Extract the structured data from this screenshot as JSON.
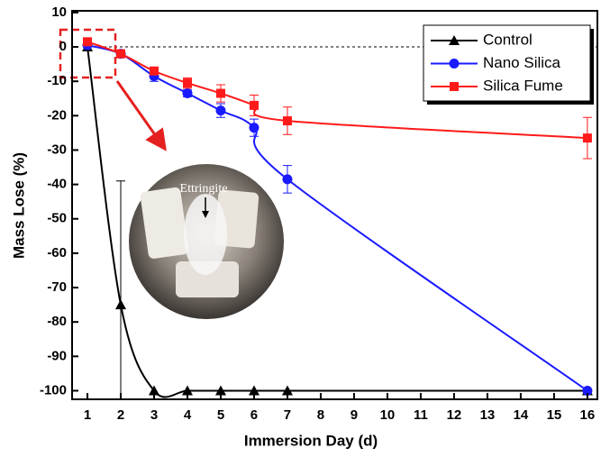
{
  "chart_data": {
    "type": "line",
    "x_label": "Immersion Day (d)",
    "y_label": "Mass Lose (%)",
    "x": [
      1,
      2,
      3,
      4,
      5,
      6,
      7,
      16
    ],
    "xlim": [
      0.54,
      16.3
    ],
    "xticks": [
      1,
      2,
      3,
      4,
      5,
      6,
      7,
      8,
      9,
      10,
      11,
      12,
      13,
      14,
      15,
      16
    ],
    "ylim": [
      -102.5,
      10.5
    ],
    "yticks": [
      10,
      0,
      -10,
      -20,
      -30,
      -40,
      -50,
      -60,
      -70,
      -80,
      -90,
      -100
    ],
    "hline": 0,
    "legend": "upper right",
    "inset_label": "Ettringite",
    "series": [
      {
        "name": "Control",
        "color": "#000000",
        "marker": "triangle",
        "values": [
          0,
          -75,
          -100,
          -100,
          -100,
          -100,
          -100,
          -100
        ],
        "errors": [
          null,
          36,
          null,
          null,
          null,
          null,
          null,
          null
        ]
      },
      {
        "name": "Nano Silica",
        "color": "#1a1aff",
        "marker": "circle",
        "values": [
          0.5,
          -2,
          -8.5,
          -13.5,
          -18.5,
          -23.5,
          -38.5,
          -100
        ],
        "errors": [
          null,
          null,
          1.5,
          1,
          2,
          2.5,
          4,
          null
        ]
      },
      {
        "name": "Silica Fume",
        "color": "#ff1a1a",
        "marker": "square",
        "values": [
          1.5,
          -2,
          -7,
          -10.5,
          -13.5,
          -17,
          -21.5,
          -26.5
        ],
        "errors": [
          null,
          null,
          1,
          1.5,
          2.5,
          3,
          4,
          6
        ]
      }
    ]
  }
}
